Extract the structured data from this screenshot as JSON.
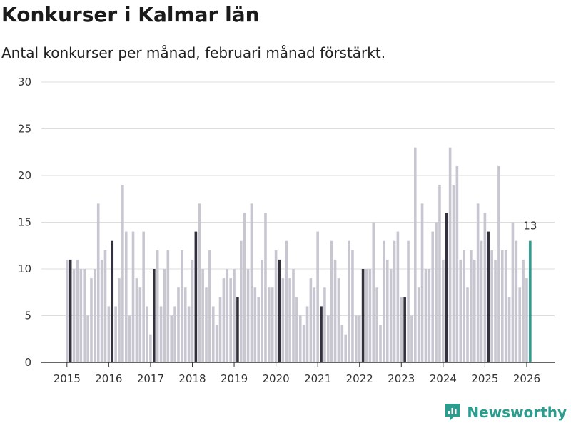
{
  "title": "Konkurser i Kalmar län",
  "subtitle": "Antal konkurser per månad, februari månad förstärkt.",
  "brand": "Newsworthy",
  "colors": {
    "normal": "#c8c7d1",
    "february": "#33313d",
    "latest": "#2a9d8f",
    "grid": "#dddddd"
  },
  "chart_data": {
    "type": "bar",
    "title": "Konkurser i Kalmar län",
    "ylim": [
      0,
      30
    ],
    "yticks": [
      0,
      5,
      10,
      15,
      20,
      25,
      30
    ],
    "xticks": [
      "2015",
      "2016",
      "2017",
      "2018",
      "2019",
      "2020",
      "2021",
      "2022",
      "2023",
      "2024",
      "2025",
      "2026"
    ],
    "start": "2015-01",
    "highlight_month": 2,
    "latest_label": "13",
    "values": [
      11,
      11,
      10,
      11,
      10,
      10,
      5,
      9,
      10,
      17,
      11,
      12,
      6,
      13,
      6,
      9,
      19,
      14,
      5,
      14,
      9,
      8,
      14,
      6,
      3,
      10,
      12,
      6,
      10,
      12,
      5,
      6,
      8,
      12,
      8,
      6,
      11,
      14,
      17,
      10,
      8,
      12,
      6,
      4,
      7,
      9,
      10,
      9,
      10,
      7,
      13,
      16,
      10,
      17,
      8,
      7,
      11,
      16,
      8,
      8,
      12,
      11,
      9,
      13,
      9,
      10,
      7,
      5,
      4,
      6,
      9,
      8,
      14,
      6,
      8,
      5,
      13,
      11,
      9,
      4,
      3,
      13,
      12,
      5,
      5,
      10,
      10,
      10,
      15,
      8,
      4,
      13,
      11,
      10,
      13,
      14,
      7,
      7,
      13,
      5,
      23,
      8,
      17,
      10,
      10,
      14,
      15,
      19,
      11,
      16,
      23,
      19,
      21,
      11,
      12,
      8,
      12,
      11,
      17,
      13,
      16,
      14,
      12,
      11,
      21,
      12,
      12,
      7,
      15,
      13,
      8,
      11,
      9,
      13
    ]
  }
}
